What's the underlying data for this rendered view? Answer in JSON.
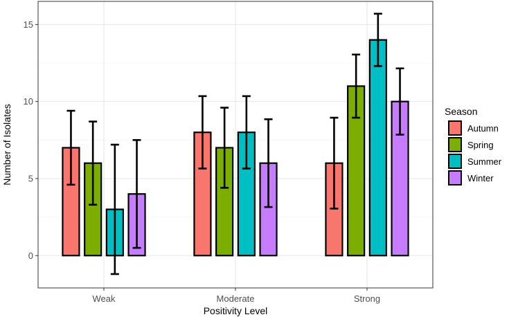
{
  "chart_data": {
    "type": "bar",
    "xlabel": "Positivity Level",
    "ylabel": "Number of Isolates",
    "categories": [
      "Weak",
      "Moderate",
      "Strong"
    ],
    "ylim": [
      -2.1,
      16.5
    ],
    "yticks": [
      0,
      5,
      10,
      15
    ],
    "grid": true,
    "legend": {
      "title": "Season",
      "placement": "right"
    },
    "series": [
      {
        "name": "Autumn",
        "color": "#F8766D",
        "values": [
          7,
          8,
          6
        ],
        "err_low": [
          4.6,
          5.65,
          3.05
        ],
        "err_high": [
          9.4,
          10.35,
          8.95
        ]
      },
      {
        "name": "Spring",
        "color": "#7CAE00",
        "values": [
          6,
          7,
          11
        ],
        "err_low": [
          3.3,
          4.4,
          8.95
        ],
        "err_high": [
          8.7,
          9.6,
          13.05
        ]
      },
      {
        "name": "Summer",
        "color": "#00BFC4",
        "values": [
          3,
          8,
          14
        ],
        "err_low": [
          -1.2,
          5.65,
          12.3
        ],
        "err_high": [
          7.2,
          10.35,
          15.7
        ]
      },
      {
        "name": "Winter",
        "color": "#C77CFF",
        "values": [
          4,
          6,
          10
        ],
        "err_low": [
          0.5,
          3.15,
          7.85
        ],
        "err_high": [
          7.5,
          8.85,
          12.15
        ]
      }
    ]
  }
}
